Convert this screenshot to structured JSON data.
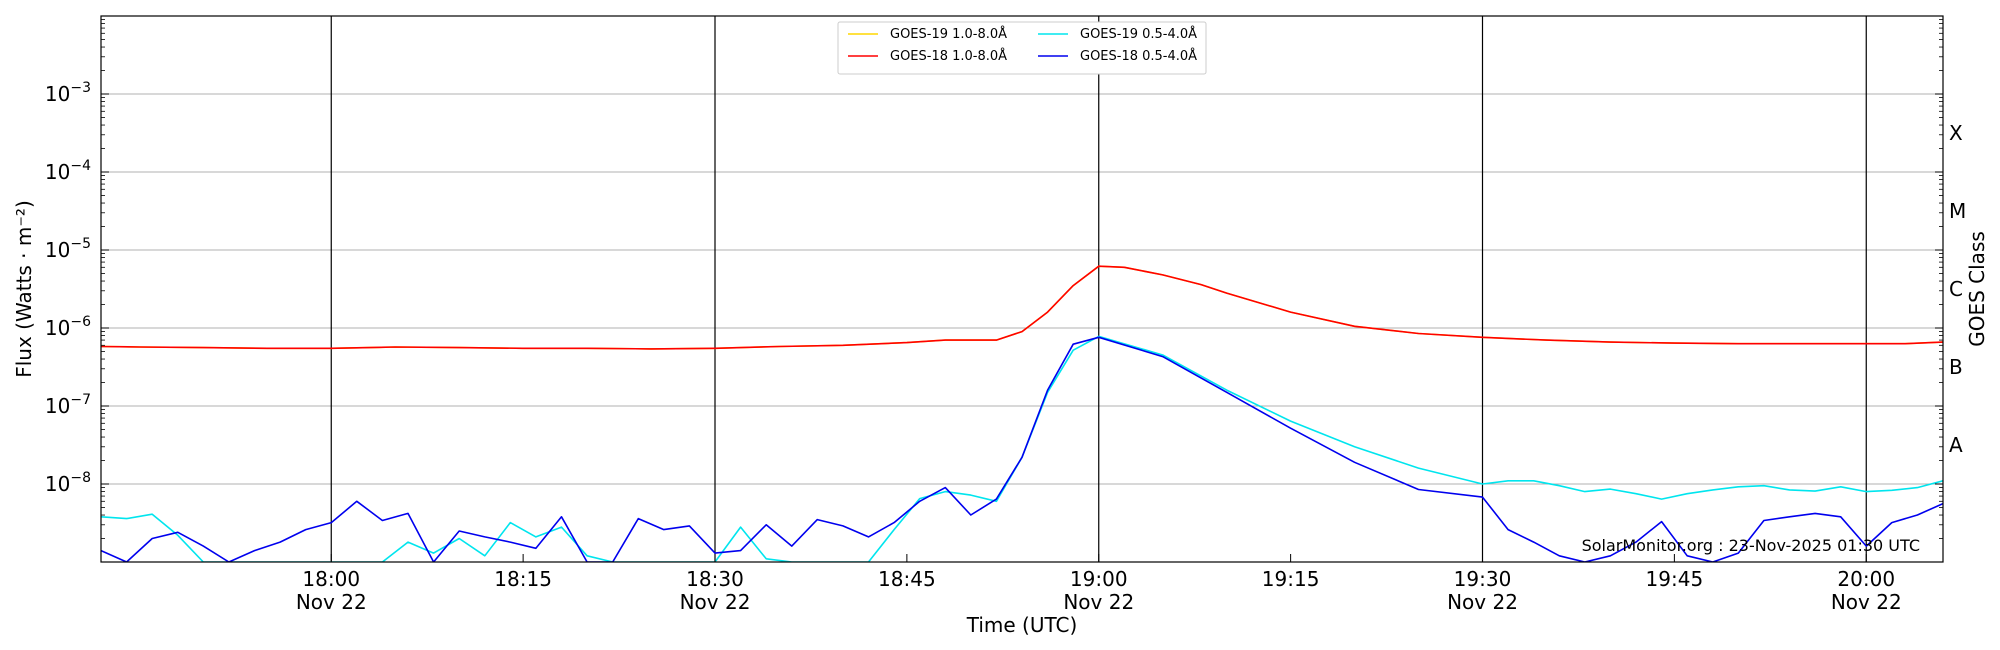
{
  "chart_data": {
    "type": "line",
    "xlabel": "Time (UTC)",
    "ylabel": "Flux (Watts · m⁻²)",
    "right_axis_label": "GOES Class",
    "yscale": "log",
    "ylim": [
      1e-09,
      0.01
    ],
    "xlim": [
      "17:42",
      "20:06"
    ],
    "grid": "horizontal",
    "legend_placement": "top-center",
    "watermark": "SolarMonitor.org : 23-Nov-2025 01:30 UTC",
    "x_ticks": [
      {
        "time": "18:00",
        "line1": "18:00",
        "line2": "Nov 22",
        "major": true
      },
      {
        "time": "18:15",
        "line1": "18:15",
        "line2": "",
        "major": false
      },
      {
        "time": "18:30",
        "line1": "18:30",
        "line2": "Nov 22",
        "major": true
      },
      {
        "time": "18:45",
        "line1": "18:45",
        "line2": "",
        "major": false
      },
      {
        "time": "19:00",
        "line1": "19:00",
        "line2": "Nov 22",
        "major": true
      },
      {
        "time": "19:15",
        "line1": "19:15",
        "line2": "",
        "major": false
      },
      {
        "time": "19:30",
        "line1": "19:30",
        "line2": "Nov 22",
        "major": true
      },
      {
        "time": "19:45",
        "line1": "19:45",
        "line2": "",
        "major": false
      },
      {
        "time": "20:00",
        "line1": "20:00",
        "line2": "Nov 22",
        "major": true
      }
    ],
    "y_ticks": [
      {
        "value": 1e-08,
        "base": "10",
        "exp": "−8"
      },
      {
        "value": 1e-07,
        "base": "10",
        "exp": "−7"
      },
      {
        "value": 1e-06,
        "base": "10",
        "exp": "−6"
      },
      {
        "value": 1e-05,
        "base": "10",
        "exp": "−5"
      },
      {
        "value": 0.0001,
        "base": "10",
        "exp": "−4"
      },
      {
        "value": 0.001,
        "base": "10",
        "exp": "−3"
      }
    ],
    "goes_classes": [
      {
        "label": "A",
        "value": 1e-08
      },
      {
        "label": "B",
        "value": 1e-07
      },
      {
        "label": "C",
        "value": 1e-06
      },
      {
        "label": "M",
        "value": 1e-05
      },
      {
        "label": "X",
        "value": 0.0001
      }
    ],
    "series": [
      {
        "name": "GOES-19 1.0-8.0Å",
        "color": "#ffd700",
        "x": [
          "17:42",
          "17:45",
          "17:50",
          "17:55",
          "18:00",
          "18:05",
          "18:10",
          "18:15",
          "18:20",
          "18:25",
          "18:30",
          "18:35",
          "18:40",
          "18:45",
          "18:48",
          "18:52",
          "18:54",
          "18:56",
          "18:58",
          "19:00",
          "19:02",
          "19:05",
          "19:08",
          "19:10",
          "19:15",
          "19:20",
          "19:25",
          "19:30",
          "19:35",
          "19:40",
          "19:45",
          "19:50",
          "19:55",
          "20:00",
          "20:03",
          "20:06"
        ],
        "y": [
          5.8e-07,
          5.7e-07,
          5.6e-07,
          5.5e-07,
          5.5e-07,
          5.7e-07,
          5.6e-07,
          5.5e-07,
          5.5e-07,
          5.4e-07,
          5.5e-07,
          5.8e-07,
          6e-07,
          6.5e-07,
          7e-07,
          7e-07,
          9e-07,
          1.6e-06,
          3.5e-06,
          6.2e-06,
          6e-06,
          4.8e-06,
          3.6e-06,
          2.8e-06,
          1.6e-06,
          1.05e-06,
          8.5e-07,
          7.6e-07,
          7e-07,
          6.6e-07,
          6.4e-07,
          6.3e-07,
          6.3e-07,
          6.3e-07,
          6.3e-07,
          6.6e-07
        ]
      },
      {
        "name": "GOES-18 1.0-8.0Å",
        "color": "#ff0000",
        "x": [
          "17:42",
          "17:45",
          "17:50",
          "17:55",
          "18:00",
          "18:05",
          "18:10",
          "18:15",
          "18:20",
          "18:25",
          "18:30",
          "18:35",
          "18:40",
          "18:45",
          "18:48",
          "18:52",
          "18:54",
          "18:56",
          "18:58",
          "19:00",
          "19:02",
          "19:05",
          "19:08",
          "19:10",
          "19:15",
          "19:20",
          "19:25",
          "19:30",
          "19:35",
          "19:40",
          "19:45",
          "19:50",
          "19:55",
          "20:00",
          "20:03",
          "20:06"
        ],
        "y": [
          5.8e-07,
          5.7e-07,
          5.6e-07,
          5.5e-07,
          5.5e-07,
          5.7e-07,
          5.6e-07,
          5.5e-07,
          5.5e-07,
          5.4e-07,
          5.5e-07,
          5.8e-07,
          6e-07,
          6.5e-07,
          7e-07,
          7e-07,
          9e-07,
          1.6e-06,
          3.5e-06,
          6.2e-06,
          6e-06,
          4.8e-06,
          3.6e-06,
          2.8e-06,
          1.6e-06,
          1.05e-06,
          8.5e-07,
          7.6e-07,
          7e-07,
          6.6e-07,
          6.4e-07,
          6.3e-07,
          6.3e-07,
          6.3e-07,
          6.3e-07,
          6.6e-07
        ]
      },
      {
        "name": "GOES-19 0.5-4.0Å",
        "color": "#00e5ee",
        "x": [
          "17:42",
          "17:44",
          "17:46",
          "17:48",
          "17:50",
          "17:52",
          "17:54",
          "17:56",
          "17:58",
          "18:00",
          "18:02",
          "18:04",
          "18:06",
          "18:08",
          "18:10",
          "18:12",
          "18:14",
          "18:16",
          "18:18",
          "18:20",
          "18:22",
          "18:24",
          "18:26",
          "18:28",
          "18:30",
          "18:32",
          "18:34",
          "18:36",
          "18:38",
          "18:40",
          "18:42",
          "18:44",
          "18:46",
          "18:48",
          "18:50",
          "18:52",
          "18:54",
          "18:56",
          "18:58",
          "19:00",
          "19:05",
          "19:10",
          "19:15",
          "19:20",
          "19:25",
          "19:30",
          "19:32",
          "19:34",
          "19:36",
          "19:38",
          "19:40",
          "19:42",
          "19:44",
          "19:46",
          "19:48",
          "19:50",
          "19:52",
          "19:54",
          "19:56",
          "19:58",
          "20:00",
          "20:02",
          "20:04",
          "20:06"
        ],
        "y": [
          3.8e-09,
          3.6e-09,
          4.1e-09,
          2.2e-09,
          1e-09,
          1e-09,
          1e-09,
          1e-09,
          1e-09,
          1e-09,
          1e-09,
          1e-09,
          1.8e-09,
          1.3e-09,
          2e-09,
          1.2e-09,
          3.2e-09,
          2.1e-09,
          2.8e-09,
          1.2e-09,
          1e-09,
          1e-09,
          1e-09,
          1e-09,
          1e-09,
          2.8e-09,
          1.1e-09,
          1e-09,
          1e-09,
          1e-09,
          1e-09,
          2.6e-09,
          6.5e-09,
          8e-09,
          7.2e-09,
          6e-09,
          2.2e-08,
          1.5e-07,
          5.2e-07,
          7.8e-07,
          4.5e-07,
          1.6e-07,
          6.4e-08,
          3e-08,
          1.6e-08,
          1e-08,
          1.1e-08,
          1.1e-08,
          9.5e-09,
          8e-09,
          8.6e-09,
          7.5e-09,
          6.4e-09,
          7.5e-09,
          8.4e-09,
          9.2e-09,
          9.5e-09,
          8.4e-09,
          8.1e-09,
          9.2e-09,
          8e-09,
          8.3e-09,
          9e-09,
          1.1e-08
        ]
      },
      {
        "name": "GOES-18 0.5-4.0Å",
        "color": "#0000ee",
        "x": [
          "17:42",
          "17:44",
          "17:46",
          "17:48",
          "17:50",
          "17:52",
          "17:54",
          "17:56",
          "17:58",
          "18:00",
          "18:02",
          "18:04",
          "18:06",
          "18:08",
          "18:10",
          "18:12",
          "18:14",
          "18:16",
          "18:18",
          "18:20",
          "18:22",
          "18:24",
          "18:26",
          "18:28",
          "18:30",
          "18:32",
          "18:34",
          "18:36",
          "18:38",
          "18:40",
          "18:42",
          "18:44",
          "18:46",
          "18:48",
          "18:50",
          "18:52",
          "18:54",
          "18:56",
          "18:58",
          "19:00",
          "19:05",
          "19:10",
          "19:15",
          "19:20",
          "19:25",
          "19:30",
          "19:32",
          "19:34",
          "19:36",
          "19:38",
          "19:40",
          "19:42",
          "19:44",
          "19:46",
          "19:48",
          "19:50",
          "19:52",
          "19:54",
          "19:56",
          "19:58",
          "20:00",
          "20:02",
          "20:04",
          "20:06"
        ],
        "y": [
          1.4e-09,
          1e-09,
          2e-09,
          2.4e-09,
          1.6e-09,
          1e-09,
          1.4e-09,
          1.8e-09,
          2.6e-09,
          3.2e-09,
          6e-09,
          3.4e-09,
          4.2e-09,
          1e-09,
          2.5e-09,
          2.1e-09,
          1.8e-09,
          1.5e-09,
          3.8e-09,
          1e-09,
          1e-09,
          3.6e-09,
          2.6e-09,
          2.9e-09,
          1.3e-09,
          1.4e-09,
          3e-09,
          1.6e-09,
          3.5e-09,
          2.9e-09,
          2.1e-09,
          3.2e-09,
          6e-09,
          9e-09,
          4e-09,
          6.4e-09,
          2.2e-08,
          1.6e-07,
          6.2e-07,
          7.6e-07,
          4.3e-07,
          1.5e-07,
          5.2e-08,
          1.9e-08,
          8.5e-09,
          6.8e-09,
          2.6e-09,
          1.8e-09,
          1.2e-09,
          1e-09,
          1.2e-09,
          1.8e-09,
          3.3e-09,
          1.2e-09,
          1e-09,
          1.3e-09,
          3.4e-09,
          3.8e-09,
          4.2e-09,
          3.8e-09,
          1.6e-09,
          3.2e-09,
          4e-09,
          5.6e-09
        ]
      }
    ]
  }
}
